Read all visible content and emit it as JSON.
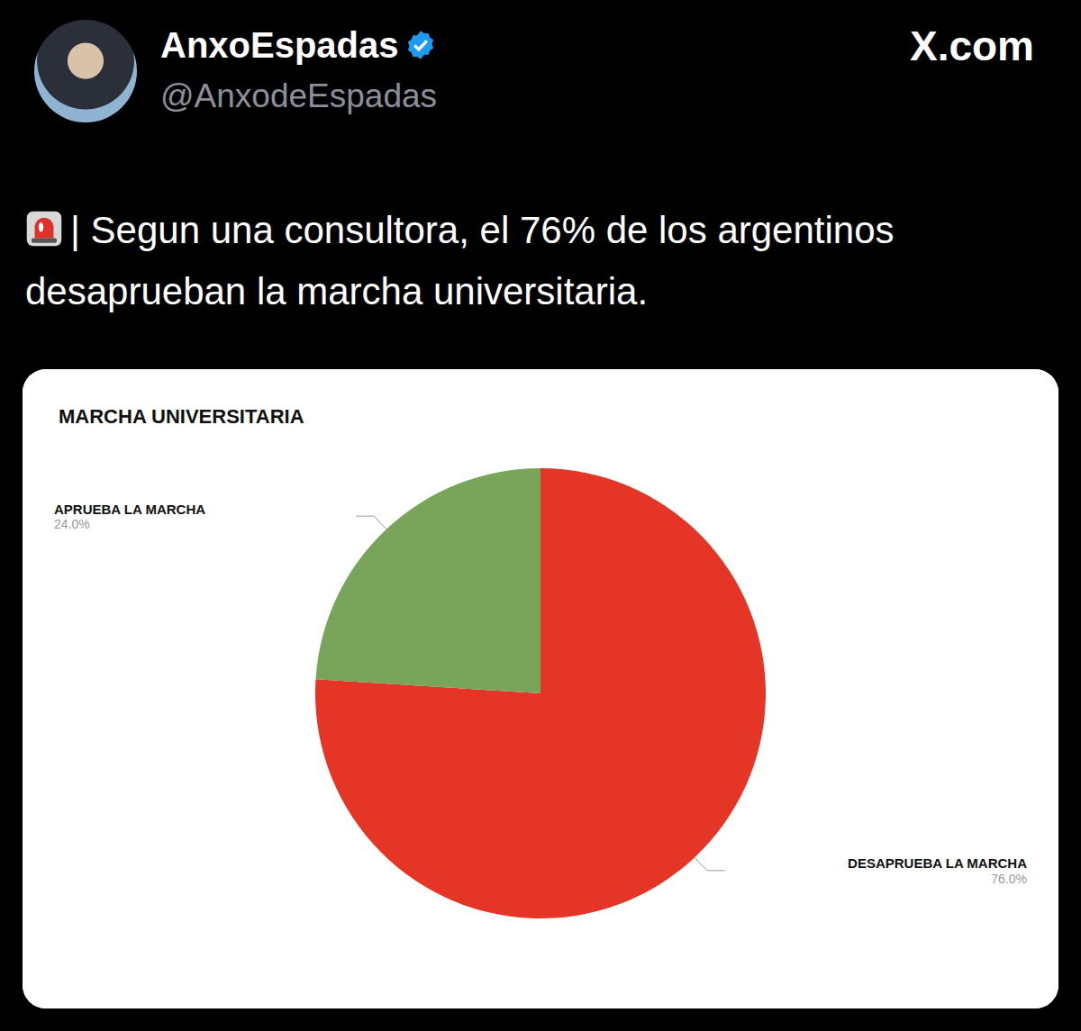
{
  "post": {
    "author": "AnxoEspadas",
    "handle": "@AnxodeEspadas",
    "site": "X.com",
    "text": "| Segun una consultora, el 76% de los argentinos desaprueban la marcha universitaria."
  },
  "chart_data": {
    "type": "pie",
    "title": "MARCHA UNIVERSITARIA",
    "categories": [
      "DESAPRUEBA LA MARCHA",
      "APRUEBA LA MARCHA"
    ],
    "values": [
      76,
      24
    ],
    "value_labels": [
      "76.0%",
      "24.0%"
    ],
    "colors": [
      "#e43526",
      "#78a55a"
    ],
    "data_labels": true
  }
}
